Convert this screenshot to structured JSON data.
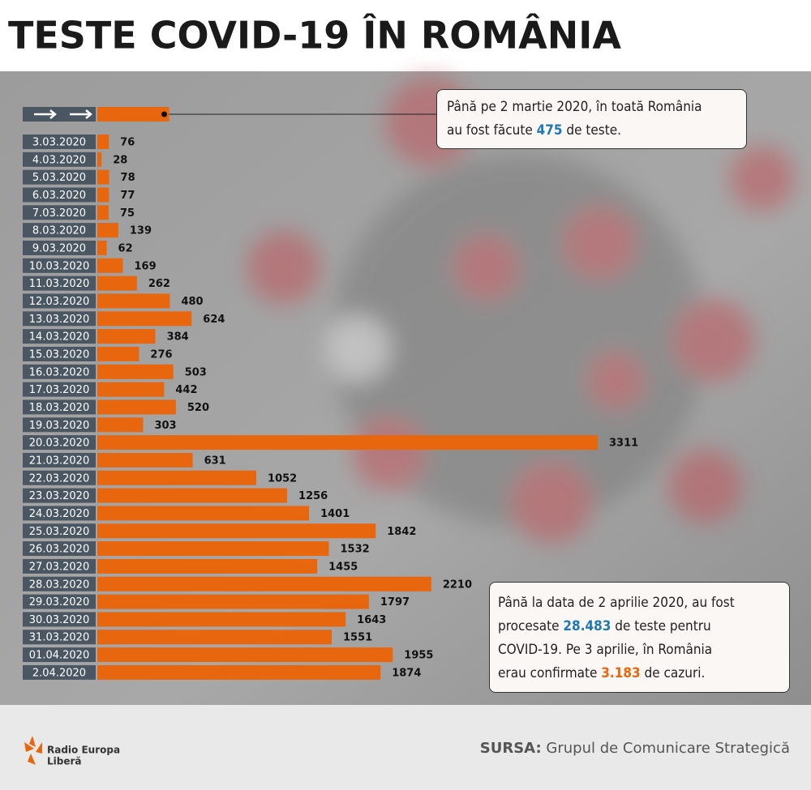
{
  "chart_data": {
    "type": "bar",
    "orientation": "horizontal",
    "title": "TESTE COVID-19 ÎN ROMÂNIA",
    "categories": [
      "3.03.2020",
      "4.03.2020",
      "5.03.2020",
      "6.03.2020",
      "7.03.2020",
      "8.03.2020",
      "9.03.2020",
      "10.03.2020",
      "11.03.2020",
      "12.03.2020",
      "13.03.2020",
      "14.03.2020",
      "15.03.2020",
      "16.03.2020",
      "17.03.2020",
      "18.03.2020",
      "19.03.2020",
      "20.03.2020",
      "21.03.2020",
      "22.03.2020",
      "23.03.2020",
      "24.03.2020",
      "25.03.2020",
      "26.03.2020",
      "27.03.2020",
      "28.03.2020",
      "29.03.2020",
      "30.03.2020",
      "31.03.2020",
      "01.04.2020",
      "2.04.2020"
    ],
    "values": [
      76,
      28,
      78,
      77,
      75,
      139,
      62,
      169,
      262,
      480,
      624,
      384,
      276,
      503,
      442,
      520,
      303,
      3311,
      631,
      1052,
      1256,
      1401,
      1842,
      1532,
      1455,
      2210,
      1797,
      1643,
      1551,
      1955,
      1874
    ],
    "color": "#e8660e",
    "label_box_color": "#4b5663",
    "annotation_top": {
      "line1": "Până pe 2 martie 2020, în toată România",
      "before": "au fost făcute",
      "value": 475,
      "after": "de teste."
    },
    "annotation_bottom": {
      "line1": "Până la data de 2 aprilie 2020, au fost",
      "line2_before": "procesate",
      "line2_value": "28.483",
      "line2_after": "de teste pentru",
      "line3": "COVID-19.  Pe 3 aprilie, în România",
      "line4_before": "erau confirmate",
      "line4_value": "3.183",
      "line4_after": "de cazuri."
    },
    "logo": {
      "line1": "Radio Europa",
      "line2": "Liberă"
    },
    "source_label": "SURSA:",
    "source": "Grupul de Comunicare Strategică"
  }
}
